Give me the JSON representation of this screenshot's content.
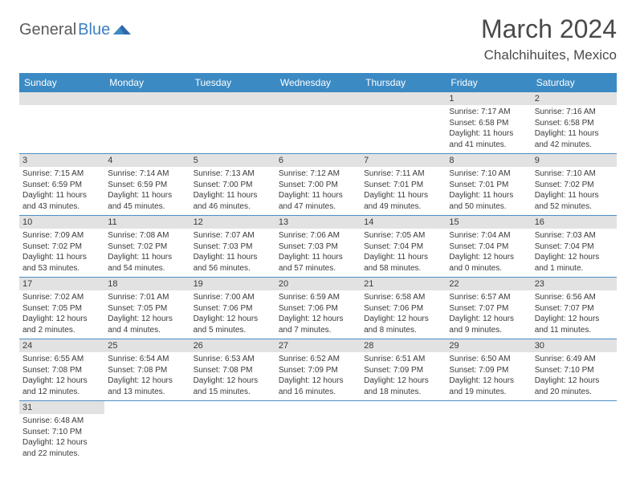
{
  "logo": {
    "text1": "General",
    "text2": "Blue"
  },
  "title": "March 2024",
  "location": "Chalchihuites, Mexico",
  "colors": {
    "header_bg": "#3b8ac4",
    "header_text": "#ffffff",
    "daynum_bg": "#e2e2e2",
    "row_border": "#4a8fc9",
    "text": "#3a3a3a",
    "logo_accent": "#3b7fc4"
  },
  "weekdays": [
    "Sunday",
    "Monday",
    "Tuesday",
    "Wednesday",
    "Thursday",
    "Friday",
    "Saturday"
  ],
  "weeks": [
    [
      null,
      null,
      null,
      null,
      null,
      {
        "n": "1",
        "sunrise": "Sunrise: 7:17 AM",
        "sunset": "Sunset: 6:58 PM",
        "daylight": "Daylight: 11 hours and 41 minutes."
      },
      {
        "n": "2",
        "sunrise": "Sunrise: 7:16 AM",
        "sunset": "Sunset: 6:58 PM",
        "daylight": "Daylight: 11 hours and 42 minutes."
      }
    ],
    [
      {
        "n": "3",
        "sunrise": "Sunrise: 7:15 AM",
        "sunset": "Sunset: 6:59 PM",
        "daylight": "Daylight: 11 hours and 43 minutes."
      },
      {
        "n": "4",
        "sunrise": "Sunrise: 7:14 AM",
        "sunset": "Sunset: 6:59 PM",
        "daylight": "Daylight: 11 hours and 45 minutes."
      },
      {
        "n": "5",
        "sunrise": "Sunrise: 7:13 AM",
        "sunset": "Sunset: 7:00 PM",
        "daylight": "Daylight: 11 hours and 46 minutes."
      },
      {
        "n": "6",
        "sunrise": "Sunrise: 7:12 AM",
        "sunset": "Sunset: 7:00 PM",
        "daylight": "Daylight: 11 hours and 47 minutes."
      },
      {
        "n": "7",
        "sunrise": "Sunrise: 7:11 AM",
        "sunset": "Sunset: 7:01 PM",
        "daylight": "Daylight: 11 hours and 49 minutes."
      },
      {
        "n": "8",
        "sunrise": "Sunrise: 7:10 AM",
        "sunset": "Sunset: 7:01 PM",
        "daylight": "Daylight: 11 hours and 50 minutes."
      },
      {
        "n": "9",
        "sunrise": "Sunrise: 7:10 AM",
        "sunset": "Sunset: 7:02 PM",
        "daylight": "Daylight: 11 hours and 52 minutes."
      }
    ],
    [
      {
        "n": "10",
        "sunrise": "Sunrise: 7:09 AM",
        "sunset": "Sunset: 7:02 PM",
        "daylight": "Daylight: 11 hours and 53 minutes."
      },
      {
        "n": "11",
        "sunrise": "Sunrise: 7:08 AM",
        "sunset": "Sunset: 7:02 PM",
        "daylight": "Daylight: 11 hours and 54 minutes."
      },
      {
        "n": "12",
        "sunrise": "Sunrise: 7:07 AM",
        "sunset": "Sunset: 7:03 PM",
        "daylight": "Daylight: 11 hours and 56 minutes."
      },
      {
        "n": "13",
        "sunrise": "Sunrise: 7:06 AM",
        "sunset": "Sunset: 7:03 PM",
        "daylight": "Daylight: 11 hours and 57 minutes."
      },
      {
        "n": "14",
        "sunrise": "Sunrise: 7:05 AM",
        "sunset": "Sunset: 7:04 PM",
        "daylight": "Daylight: 11 hours and 58 minutes."
      },
      {
        "n": "15",
        "sunrise": "Sunrise: 7:04 AM",
        "sunset": "Sunset: 7:04 PM",
        "daylight": "Daylight: 12 hours and 0 minutes."
      },
      {
        "n": "16",
        "sunrise": "Sunrise: 7:03 AM",
        "sunset": "Sunset: 7:04 PM",
        "daylight": "Daylight: 12 hours and 1 minute."
      }
    ],
    [
      {
        "n": "17",
        "sunrise": "Sunrise: 7:02 AM",
        "sunset": "Sunset: 7:05 PM",
        "daylight": "Daylight: 12 hours and 2 minutes."
      },
      {
        "n": "18",
        "sunrise": "Sunrise: 7:01 AM",
        "sunset": "Sunset: 7:05 PM",
        "daylight": "Daylight: 12 hours and 4 minutes."
      },
      {
        "n": "19",
        "sunrise": "Sunrise: 7:00 AM",
        "sunset": "Sunset: 7:06 PM",
        "daylight": "Daylight: 12 hours and 5 minutes."
      },
      {
        "n": "20",
        "sunrise": "Sunrise: 6:59 AM",
        "sunset": "Sunset: 7:06 PM",
        "daylight": "Daylight: 12 hours and 7 minutes."
      },
      {
        "n": "21",
        "sunrise": "Sunrise: 6:58 AM",
        "sunset": "Sunset: 7:06 PM",
        "daylight": "Daylight: 12 hours and 8 minutes."
      },
      {
        "n": "22",
        "sunrise": "Sunrise: 6:57 AM",
        "sunset": "Sunset: 7:07 PM",
        "daylight": "Daylight: 12 hours and 9 minutes."
      },
      {
        "n": "23",
        "sunrise": "Sunrise: 6:56 AM",
        "sunset": "Sunset: 7:07 PM",
        "daylight": "Daylight: 12 hours and 11 minutes."
      }
    ],
    [
      {
        "n": "24",
        "sunrise": "Sunrise: 6:55 AM",
        "sunset": "Sunset: 7:08 PM",
        "daylight": "Daylight: 12 hours and 12 minutes."
      },
      {
        "n": "25",
        "sunrise": "Sunrise: 6:54 AM",
        "sunset": "Sunset: 7:08 PM",
        "daylight": "Daylight: 12 hours and 13 minutes."
      },
      {
        "n": "26",
        "sunrise": "Sunrise: 6:53 AM",
        "sunset": "Sunset: 7:08 PM",
        "daylight": "Daylight: 12 hours and 15 minutes."
      },
      {
        "n": "27",
        "sunrise": "Sunrise: 6:52 AM",
        "sunset": "Sunset: 7:09 PM",
        "daylight": "Daylight: 12 hours and 16 minutes."
      },
      {
        "n": "28",
        "sunrise": "Sunrise: 6:51 AM",
        "sunset": "Sunset: 7:09 PM",
        "daylight": "Daylight: 12 hours and 18 minutes."
      },
      {
        "n": "29",
        "sunrise": "Sunrise: 6:50 AM",
        "sunset": "Sunset: 7:09 PM",
        "daylight": "Daylight: 12 hours and 19 minutes."
      },
      {
        "n": "30",
        "sunrise": "Sunrise: 6:49 AM",
        "sunset": "Sunset: 7:10 PM",
        "daylight": "Daylight: 12 hours and 20 minutes."
      }
    ],
    [
      {
        "n": "31",
        "sunrise": "Sunrise: 6:48 AM",
        "sunset": "Sunset: 7:10 PM",
        "daylight": "Daylight: 12 hours and 22 minutes."
      },
      null,
      null,
      null,
      null,
      null,
      null
    ]
  ]
}
